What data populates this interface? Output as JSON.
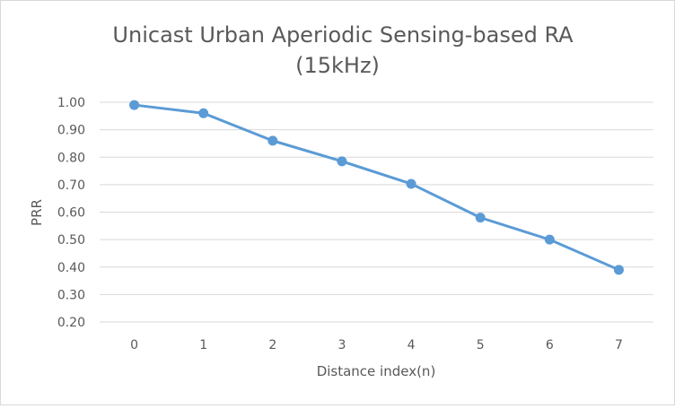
{
  "chart_data": {
    "type": "line",
    "title_lines": [
      "Unicast Urban Aperiodic Sensing-based  RA",
      "(15kHz)"
    ],
    "xlabel": "Distance index(n)",
    "ylabel": "PRR",
    "x": [
      0,
      1,
      2,
      3,
      4,
      5,
      6,
      7
    ],
    "x_tick_labels": [
      "0",
      "1",
      "2",
      "3",
      "4",
      "5",
      "6",
      "7"
    ],
    "y_tick_labels": [
      "0.20",
      "0.30",
      "0.40",
      "0.50",
      "0.60",
      "0.70",
      "0.80",
      "0.90",
      "1.00"
    ],
    "ylim": [
      0.2,
      1.0
    ],
    "y_step": 0.1,
    "grid": "horizontal",
    "legend": "none",
    "series": [
      {
        "values": [
          0.99,
          0.96,
          0.86,
          0.785,
          0.703,
          0.58,
          0.5,
          0.39
        ],
        "color": "#5b9bd5"
      }
    ],
    "colors": {
      "grid": "#d9d9d9",
      "text": "#595959",
      "line": "#5b9bd5"
    }
  }
}
